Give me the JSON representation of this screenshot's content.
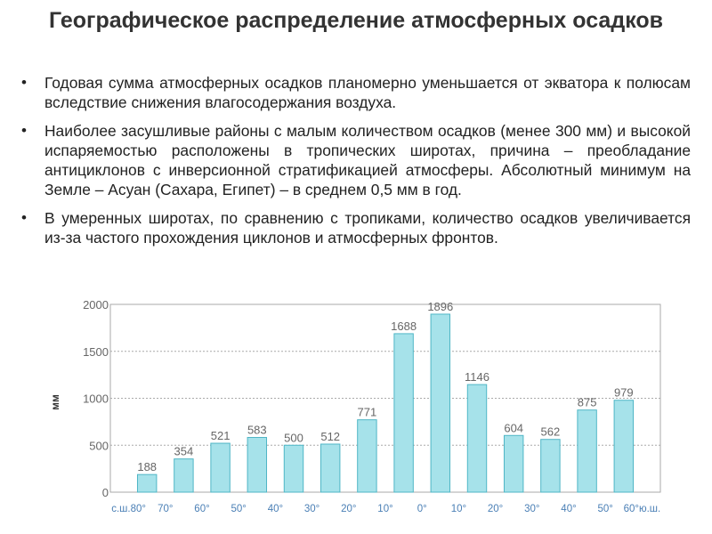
{
  "title": "Географическое распределение атмосферных осадков",
  "bullets": [
    "Годовая сумма атмосферных осадков планомерно уменьшается от экватора к полюсам вследствие снижения влагосодержания воздуха.",
    "Наиболее засушливые районы с малым количеством осадков (менее 300 мм) и высокой испаряемостью расположены в тропических широтах, причина – преобладание антициклонов с инверсионной стратификацией атмосферы. Абсолютный минимум на Земле – Асуан (Сахара, Египет) – в среднем 0,5 мм в год.",
    "В умеренных широтах, по сравнению с тропиками, количество осадков увеличивается из-за частого прохождения циклонов и атмосферных фронтов."
  ],
  "bullet_marker": "•",
  "colors": {
    "bar_fill": "#a6e2ea",
    "bar_stroke": "#4fb6c6",
    "grid": "#aaaaaa",
    "axis_text": "#666666",
    "xlabel_text": "#4a7fb5"
  },
  "chart_data": {
    "type": "bar",
    "title": "",
    "ylabel": "мм",
    "xlabel": "",
    "ylim": [
      0,
      2000
    ],
    "yticks": [
      0,
      500,
      1000,
      1500,
      2000
    ],
    "xticks": [
      "с.ш.80°",
      "70°",
      "60°",
      "50°",
      "40°",
      "30°",
      "20°",
      "10°",
      "0°",
      "10°",
      "20°",
      "30°",
      "40°",
      "50°",
      "60°ю.ш."
    ],
    "values": [
      188,
      354,
      521,
      583,
      500,
      512,
      771,
      1688,
      1896,
      1146,
      604,
      562,
      875,
      979
    ]
  }
}
